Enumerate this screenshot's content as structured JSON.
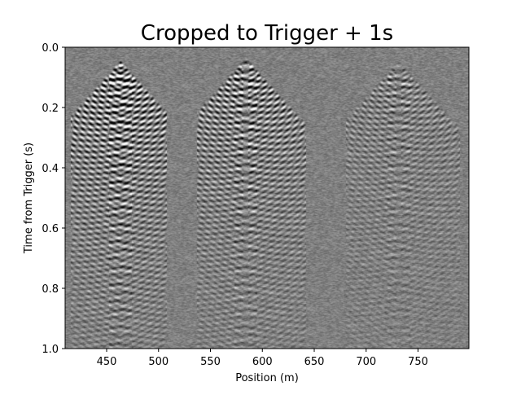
{
  "chart_data": {
    "type": "heatmap",
    "title": "Cropped to Trigger + 1s",
    "xlabel": "Position (m)",
    "ylabel": "Time from Trigger (s)",
    "xlim": [
      410,
      799
    ],
    "ylim": [
      1.0,
      0.0
    ],
    "y_axis_inverted": true,
    "xticks": [
      450,
      500,
      550,
      600,
      650,
      700,
      750
    ],
    "xtick_labels": [
      "450",
      "500",
      "550",
      "600",
      "650",
      "700",
      "750"
    ],
    "yticks": [
      0.0,
      0.2,
      0.4,
      0.6,
      0.8,
      1.0
    ],
    "ytick_labels": [
      "0.0",
      "0.2",
      "0.4",
      "0.6",
      "0.8",
      "1.0"
    ],
    "colormap": "grayscale",
    "background_color": "#808080",
    "shot_gathers": [
      {
        "apex_position": 463,
        "apex_time": 0.04,
        "left_edge": 415,
        "right_edge": 508,
        "amplitude": 1.0
      },
      {
        "apex_position": 584,
        "apex_time": 0.03,
        "left_edge": 537,
        "right_edge": 642,
        "amplitude": 0.8
      },
      {
        "apex_position": 731,
        "apex_time": 0.04,
        "left_edge": 680,
        "right_edge": 790,
        "amplitude": 0.45
      }
    ]
  }
}
